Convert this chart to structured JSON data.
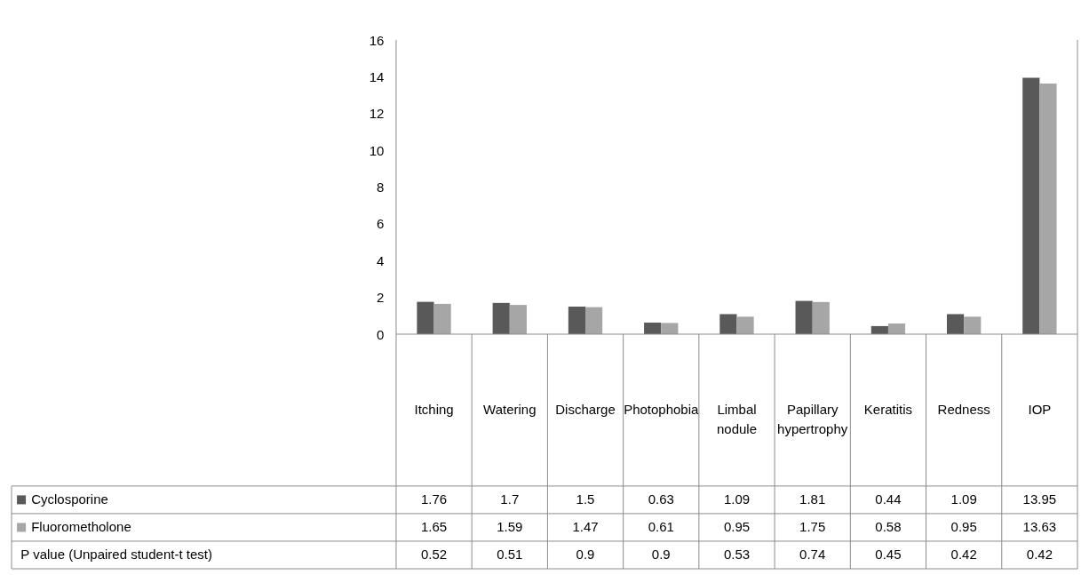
{
  "chart_data": {
    "type": "bar",
    "categories": [
      "Itching",
      "Watering",
      "Discharge",
      "Photophobia",
      "Limbal nodule",
      "Papillary hypertrophy",
      "Keratitis",
      "Redness",
      "IOP"
    ],
    "series": [
      {
        "name": "Cyclosporine",
        "color": "#595959",
        "values": [
          1.76,
          1.7,
          1.5,
          0.63,
          1.09,
          1.81,
          0.44,
          1.09,
          13.95
        ]
      },
      {
        "name": "Fluorometholone",
        "color": "#a6a6a6",
        "values": [
          1.65,
          1.59,
          1.47,
          0.61,
          0.95,
          1.75,
          0.58,
          0.95,
          13.63
        ]
      }
    ],
    "annotations": [
      "P value (Unpaired student-t test)",
      "0.52",
      "0.51",
      "0.9",
      "0.9",
      "0.53",
      "0.74",
      "0.45",
      "0.42",
      "0.42"
    ],
    "ylim": [
      0,
      16
    ],
    "yticks": [
      0,
      2,
      4,
      6,
      8,
      10,
      12,
      14,
      16
    ],
    "legend": "bottom",
    "data_labels": true
  }
}
